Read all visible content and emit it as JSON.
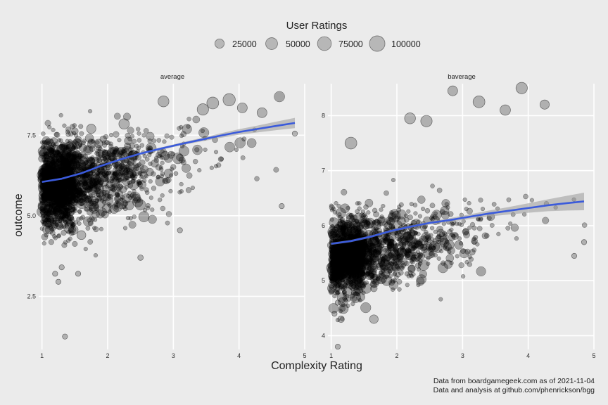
{
  "chart_data": {
    "type": "scatter",
    "legend": {
      "title": "User Ratings",
      "placement": "top",
      "entries": [
        {
          "label": "25000",
          "value": 25000
        },
        {
          "label": "50000",
          "value": 50000
        },
        {
          "label": "75000",
          "value": 75000
        },
        {
          "label": "100000",
          "value": 100000
        }
      ]
    },
    "xlabel": "Complexity Rating",
    "ylabel": "outcome",
    "grid": true,
    "point_color": "#000000",
    "smooth_color": "#3b5bdb",
    "ribbon_color": "#999999",
    "caption": [
      "Data from boardgamegeek.com as of 2021-11-04",
      "Data and analysis at github.com/phenrickson/bgg"
    ],
    "panels": [
      {
        "name": "average",
        "xlim": [
          0.95,
          5.0
        ],
        "ylim": [
          0.85,
          9.1
        ],
        "x_ticks": [
          1,
          2,
          3,
          4,
          5
        ],
        "x_tick_labels": [
          "1",
          "2",
          "3",
          "4",
          "5"
        ],
        "y_ticks": [
          2.5,
          5.0,
          7.5
        ],
        "y_tick_labels": [
          "2.5",
          "5.0",
          "7.5"
        ],
        "smooth": {
          "x": [
            1.0,
            1.3,
            1.6,
            1.9,
            2.2,
            2.5,
            2.8,
            3.1,
            3.4,
            3.7,
            4.0,
            4.3,
            4.6,
            4.85
          ],
          "y": [
            6.05,
            6.15,
            6.32,
            6.55,
            6.75,
            6.93,
            7.08,
            7.22,
            7.35,
            7.48,
            7.6,
            7.7,
            7.8,
            7.88
          ]
        },
        "cloud": {
          "x_mean": 2.0,
          "y_intercept": 5.85,
          "y_slope": 0.42,
          "y_spread": 0.75,
          "n": 1900
        },
        "sample_points": [
          {
            "x": 1.35,
            "y": 1.25,
            "users": 3000
          },
          {
            "x": 1.2,
            "y": 3.2,
            "users": 3000
          },
          {
            "x": 1.25,
            "y": 2.95,
            "users": 3000
          },
          {
            "x": 1.3,
            "y": 3.4,
            "users": 3000
          },
          {
            "x": 1.55,
            "y": 3.2,
            "users": 3000
          },
          {
            "x": 1.6,
            "y": 4.4,
            "users": 22000
          },
          {
            "x": 2.5,
            "y": 3.7,
            "users": 4000
          },
          {
            "x": 3.1,
            "y": 4.55,
            "users": 3000
          },
          {
            "x": 4.65,
            "y": 5.3,
            "users": 3000
          },
          {
            "x": 4.85,
            "y": 7.55,
            "users": 3000
          },
          {
            "x": 2.85,
            "y": 8.55,
            "users": 40000
          },
          {
            "x": 3.45,
            "y": 8.3,
            "users": 45000
          },
          {
            "x": 3.6,
            "y": 8.5,
            "users": 50000
          },
          {
            "x": 3.85,
            "y": 8.6,
            "users": 55000
          },
          {
            "x": 4.05,
            "y": 8.35,
            "users": 30000
          },
          {
            "x": 4.35,
            "y": 8.2,
            "users": 30000
          },
          {
            "x": 2.25,
            "y": 7.85,
            "users": 35000
          },
          {
            "x": 1.75,
            "y": 7.7,
            "users": 25000
          }
        ]
      },
      {
        "name": "baverage",
        "xlim": [
          0.95,
          5.0
        ],
        "ylim": [
          3.75,
          8.58
        ],
        "x_ticks": [
          1,
          2,
          3,
          4,
          5
        ],
        "x_tick_labels": [
          "1",
          "2",
          "3",
          "4",
          "5"
        ],
        "y_ticks": [
          4,
          5,
          6,
          7,
          8
        ],
        "y_tick_labels": [
          "4",
          "5",
          "6",
          "7",
          "8"
        ],
        "smooth": {
          "x": [
            1.0,
            1.3,
            1.6,
            1.9,
            2.2,
            2.5,
            2.8,
            3.1,
            3.4,
            3.7,
            4.0,
            4.3,
            4.6,
            4.85
          ],
          "y": [
            5.67,
            5.72,
            5.8,
            5.9,
            5.98,
            6.05,
            6.1,
            6.16,
            6.22,
            6.27,
            6.32,
            6.37,
            6.41,
            6.44
          ]
        },
        "cloud": {
          "x_mean": 2.0,
          "y_intercept": 5.4,
          "y_slope": 0.22,
          "y_spread": 0.38,
          "n": 1900
        },
        "sample_points": [
          {
            "x": 1.1,
            "y": 3.8,
            "users": 3000
          },
          {
            "x": 1.65,
            "y": 4.3,
            "users": 20000
          },
          {
            "x": 1.15,
            "y": 4.3,
            "users": 8000
          },
          {
            "x": 1.05,
            "y": 4.4,
            "users": 3000
          },
          {
            "x": 1.1,
            "y": 4.6,
            "users": 3000
          },
          {
            "x": 2.85,
            "y": 8.45,
            "users": 30000
          },
          {
            "x": 3.25,
            "y": 8.25,
            "users": 50000
          },
          {
            "x": 3.65,
            "y": 8.1,
            "users": 35000
          },
          {
            "x": 3.9,
            "y": 8.5,
            "users": 45000
          },
          {
            "x": 4.25,
            "y": 8.2,
            "users": 25000
          },
          {
            "x": 1.3,
            "y": 7.5,
            "users": 50000
          },
          {
            "x": 2.2,
            "y": 7.95,
            "users": 40000
          },
          {
            "x": 2.45,
            "y": 7.9,
            "users": 45000
          },
          {
            "x": 4.85,
            "y": 5.7,
            "users": 3000
          },
          {
            "x": 4.7,
            "y": 5.45,
            "users": 3000
          }
        ]
      }
    ]
  }
}
